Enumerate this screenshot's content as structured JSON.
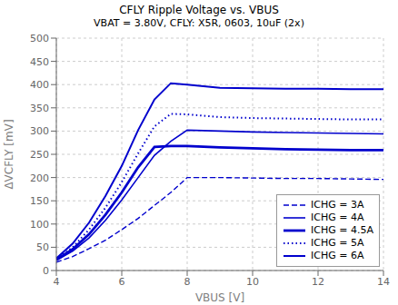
{
  "chart_data": {
    "type": "line",
    "title": "CFLY Ripple Voltage vs. VBUS",
    "subtitle": "VBAT = 3.80V, CFLY: X5R, 0603, 10uF (2x)",
    "xlabel": "VBUS [V]",
    "ylabel": "ΔVCFLY [mV]",
    "xlim": [
      4,
      14
    ],
    "ylim": [
      0,
      500
    ],
    "xticks": [
      4,
      6,
      8,
      10,
      12,
      14
    ],
    "yticks": [
      0,
      50,
      100,
      150,
      200,
      250,
      300,
      350,
      400,
      450,
      500
    ],
    "grid": true,
    "legend": "lower right",
    "x": [
      4.0,
      4.5,
      5.0,
      5.5,
      6.0,
      6.5,
      7.0,
      7.5,
      8.0,
      9.0,
      10.0,
      11.0,
      12.0,
      13.0,
      14.0
    ],
    "series": [
      {
        "name": "ICHG = 3A",
        "color": "#0000cd",
        "line_style": "dashed",
        "values": [
          18,
          30,
          47,
          65,
          88,
          112,
          140,
          168,
          200,
          200,
          199,
          198,
          198,
          197,
          196
        ]
      },
      {
        "name": "ICHG = 4A",
        "color": "#0000cd",
        "line_style": "solid",
        "values": [
          22,
          42,
          70,
          108,
          152,
          200,
          248,
          278,
          302,
          300,
          298,
          297,
          296,
          295,
          294
        ]
      },
      {
        "name": "ICHG = 4.5A",
        "color": "#0000cd",
        "line_style": "solid",
        "values": [
          23,
          46,
          78,
          120,
          168,
          222,
          266,
          268,
          268,
          265,
          263,
          261,
          260,
          259,
          259
        ]
      },
      {
        "name": "ICHG = 5A",
        "color": "#0000cd",
        "line_style": "dotted",
        "values": [
          24,
          50,
          88,
          135,
          190,
          252,
          310,
          337,
          336,
          330,
          328,
          327,
          326,
          325,
          325
        ]
      },
      {
        "name": "ICHG = 6A",
        "color": "#0000cd",
        "line_style": "solid",
        "values": [
          26,
          58,
          103,
          160,
          225,
          302,
          368,
          403,
          400,
          393,
          392,
          391,
          391,
          390,
          390
        ]
      }
    ]
  }
}
